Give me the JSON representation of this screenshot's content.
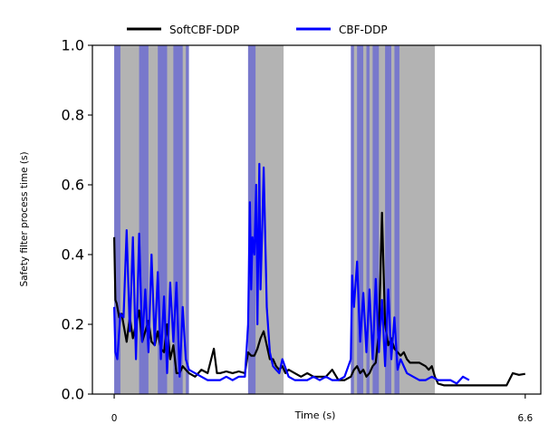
{
  "chart_data": {
    "type": "line",
    "xlabel": "Time (s)",
    "ylabel": "Safety filter process time (s)",
    "xlim": [
      -0.35,
      6.85
    ],
    "ylim": [
      0,
      1
    ],
    "x_ticks": [
      {
        "value": 0,
        "label": "0"
      },
      {
        "value": 6.6,
        "label": "6.6"
      }
    ],
    "y_ticks": [
      {
        "value": 0,
        "label": "0.0"
      },
      {
        "value": 0.2,
        "label": "0.2"
      },
      {
        "value": 0.4,
        "label": "0.4"
      },
      {
        "value": 0.6,
        "label": "0.6"
      },
      {
        "value": 0.8,
        "label": "0.8"
      },
      {
        "value": 1.0,
        "label": "1.0"
      }
    ],
    "grid": false,
    "legend_position": "top (above plot, centered)",
    "shaded_regions": [
      {
        "series": "SoftCBF-DDP",
        "color": "#808080",
        "opacity": 0.6,
        "ranges": [
          [
            0.0,
            1.2
          ],
          [
            2.15,
            2.72
          ],
          [
            3.8,
            5.15
          ]
        ]
      },
      {
        "series": "CBF-DDP",
        "color": "#0000ff",
        "opacity": 0.33,
        "ranges": [
          [
            0.0,
            0.1
          ],
          [
            0.4,
            0.55
          ],
          [
            0.7,
            0.85
          ],
          [
            0.95,
            1.1
          ],
          [
            1.15,
            1.2
          ],
          [
            2.15,
            2.27
          ],
          [
            3.8,
            3.85
          ],
          [
            3.9,
            4.0
          ],
          [
            4.05,
            4.1
          ],
          [
            4.15,
            4.25
          ],
          [
            4.35,
            4.45
          ],
          [
            4.5,
            4.58
          ]
        ]
      }
    ],
    "series": [
      {
        "name": "SoftCBF-DDP",
        "color": "#000000",
        "x": [
          0.0,
          0.02,
          0.04,
          0.08,
          0.12,
          0.2,
          0.25,
          0.3,
          0.35,
          0.4,
          0.45,
          0.5,
          0.55,
          0.6,
          0.65,
          0.7,
          0.75,
          0.8,
          0.85,
          0.9,
          0.95,
          1.0,
          1.05,
          1.1,
          1.15,
          1.2,
          1.3,
          1.4,
          1.5,
          1.6,
          1.65,
          1.7,
          1.8,
          1.9,
          2.0,
          2.1,
          2.15,
          2.2,
          2.25,
          2.3,
          2.35,
          2.4,
          2.45,
          2.5,
          2.55,
          2.6,
          2.65,
          2.7,
          2.75,
          2.8,
          2.9,
          3.0,
          3.1,
          3.2,
          3.3,
          3.4,
          3.5,
          3.6,
          3.7,
          3.8,
          3.85,
          3.9,
          3.95,
          4.0,
          4.05,
          4.1,
          4.15,
          4.2,
          4.25,
          4.3,
          4.35,
          4.4,
          4.45,
          4.5,
          4.55,
          4.6,
          4.65,
          4.7,
          4.75,
          4.8,
          4.9,
          5.0,
          5.05,
          5.1,
          5.15,
          5.2,
          5.3,
          5.4,
          5.5,
          5.6,
          5.7,
          5.8,
          5.9,
          6.0,
          6.1,
          6.2,
          6.3,
          6.4,
          6.5,
          6.6
        ],
        "y": [
          0.45,
          0.27,
          0.26,
          0.22,
          0.23,
          0.15,
          0.22,
          0.16,
          0.2,
          0.24,
          0.15,
          0.18,
          0.21,
          0.15,
          0.14,
          0.18,
          0.13,
          0.12,
          0.2,
          0.1,
          0.14,
          0.06,
          0.06,
          0.08,
          0.07,
          0.06,
          0.05,
          0.07,
          0.06,
          0.13,
          0.06,
          0.06,
          0.065,
          0.06,
          0.065,
          0.06,
          0.12,
          0.11,
          0.11,
          0.13,
          0.16,
          0.18,
          0.14,
          0.1,
          0.1,
          0.08,
          0.07,
          0.08,
          0.06,
          0.07,
          0.06,
          0.05,
          0.06,
          0.05,
          0.05,
          0.05,
          0.07,
          0.04,
          0.04,
          0.05,
          0.07,
          0.08,
          0.06,
          0.07,
          0.05,
          0.06,
          0.08,
          0.09,
          0.18,
          0.52,
          0.2,
          0.14,
          0.16,
          0.13,
          0.12,
          0.11,
          0.12,
          0.1,
          0.09,
          0.09,
          0.09,
          0.08,
          0.07,
          0.08,
          0.05,
          0.03,
          0.025,
          0.025,
          0.025,
          0.025,
          0.025,
          0.025,
          0.025,
          0.025,
          0.025,
          0.025,
          0.025,
          0.06,
          0.055,
          0.058
        ]
      },
      {
        "name": "CBF-DDP",
        "color": "#0000ff",
        "x": [
          0.0,
          0.02,
          0.05,
          0.1,
          0.15,
          0.2,
          0.25,
          0.3,
          0.35,
          0.4,
          0.45,
          0.5,
          0.55,
          0.6,
          0.65,
          0.7,
          0.75,
          0.8,
          0.85,
          0.9,
          0.95,
          1.0,
          1.05,
          1.1,
          1.15,
          1.2,
          1.3,
          1.4,
          1.5,
          1.6,
          1.7,
          1.8,
          1.9,
          2.0,
          2.1,
          2.15,
          2.18,
          2.2,
          2.22,
          2.25,
          2.28,
          2.3,
          2.33,
          2.35,
          2.38,
          2.4,
          2.45,
          2.5,
          2.55,
          2.6,
          2.65,
          2.7,
          2.8,
          2.9,
          3.0,
          3.1,
          3.2,
          3.3,
          3.4,
          3.5,
          3.6,
          3.7,
          3.8,
          3.82,
          3.85,
          3.9,
          3.95,
          4.0,
          4.05,
          4.1,
          4.15,
          4.2,
          4.25,
          4.3,
          4.35,
          4.4,
          4.45,
          4.5,
          4.55,
          4.6,
          4.7,
          4.8,
          4.9,
          5.0,
          5.1,
          5.2,
          5.3,
          5.4,
          5.5,
          5.6,
          5.7
        ],
        "y": [
          0.25,
          0.12,
          0.1,
          0.23,
          0.22,
          0.47,
          0.18,
          0.45,
          0.1,
          0.46,
          0.15,
          0.3,
          0.12,
          0.4,
          0.14,
          0.35,
          0.1,
          0.28,
          0.06,
          0.32,
          0.15,
          0.32,
          0.05,
          0.25,
          0.1,
          0.07,
          0.06,
          0.05,
          0.04,
          0.04,
          0.04,
          0.05,
          0.04,
          0.05,
          0.05,
          0.2,
          0.55,
          0.3,
          0.45,
          0.4,
          0.6,
          0.2,
          0.66,
          0.3,
          0.5,
          0.65,
          0.25,
          0.12,
          0.08,
          0.07,
          0.06,
          0.1,
          0.05,
          0.04,
          0.04,
          0.04,
          0.05,
          0.04,
          0.05,
          0.04,
          0.04,
          0.05,
          0.1,
          0.34,
          0.25,
          0.38,
          0.15,
          0.29,
          0.12,
          0.3,
          0.1,
          0.33,
          0.12,
          0.27,
          0.08,
          0.3,
          0.1,
          0.22,
          0.07,
          0.1,
          0.06,
          0.05,
          0.04,
          0.04,
          0.05,
          0.04,
          0.04,
          0.04,
          0.03,
          0.05,
          0.04
        ]
      }
    ]
  }
}
